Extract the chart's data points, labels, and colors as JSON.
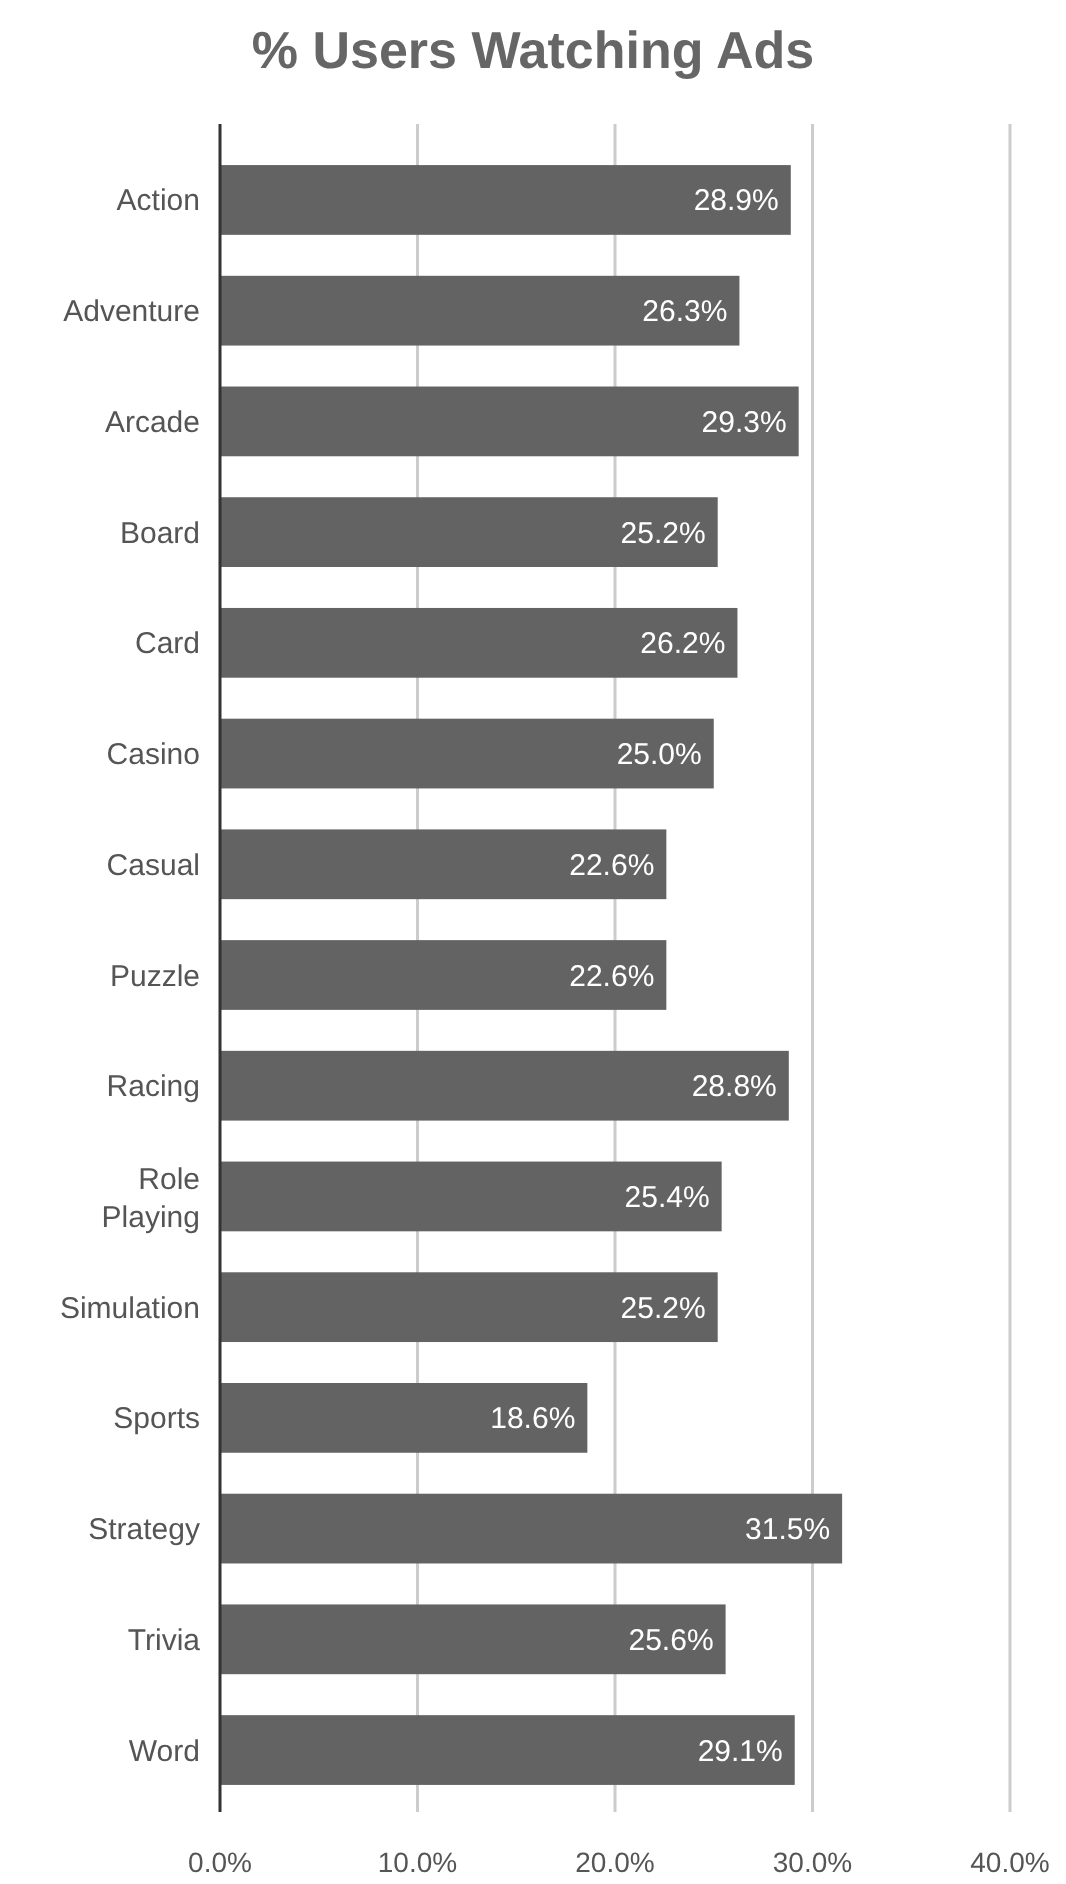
{
  "chart_data": {
    "type": "bar",
    "orientation": "horizontal",
    "title": "% Users Watching Ads",
    "categories": [
      "Action",
      "Adventure",
      "Arcade",
      "Board",
      "Card",
      "Casino",
      "Casual",
      "Puzzle",
      "Racing",
      "Role Playing",
      "Simulation",
      "Sports",
      "Strategy",
      "Trivia",
      "Word"
    ],
    "values": [
      28.9,
      26.3,
      29.3,
      25.2,
      26.2,
      25.0,
      22.6,
      22.6,
      28.8,
      25.4,
      25.2,
      18.6,
      31.5,
      25.6,
      29.1
    ],
    "value_labels": [
      "28.9%",
      "26.3%",
      "29.3%",
      "25.2%",
      "26.2%",
      "25.0%",
      "22.6%",
      "22.6%",
      "28.8%",
      "25.4%",
      "25.2%",
      "18.6%",
      "31.5%",
      "25.6%",
      "29.1%"
    ],
    "color": "#636363",
    "xlim": [
      0,
      40
    ],
    "xticks": [
      {
        "value": 0,
        "label": "0.0%"
      },
      {
        "value": 10,
        "label": "10.0%"
      },
      {
        "value": 20,
        "label": "20.0%"
      },
      {
        "value": 30,
        "label": "30.0%"
      },
      {
        "value": 40,
        "label": "40.0%"
      }
    ],
    "grid": "x"
  }
}
